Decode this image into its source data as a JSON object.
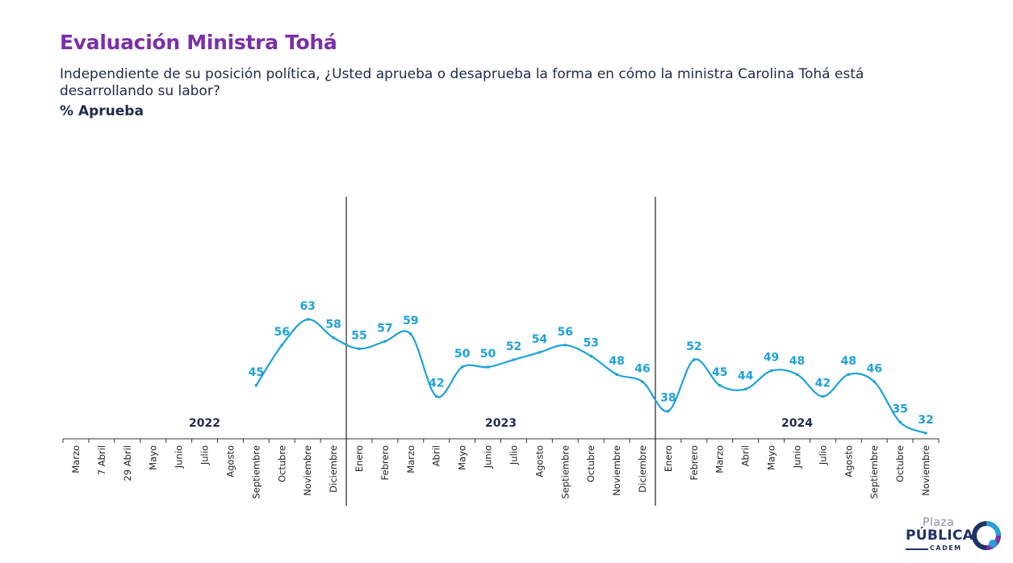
{
  "header": {
    "title": "Evaluación Ministra Tohá",
    "question": "Independiente de su posición política, ¿Usted aprueba o desaprueba la forma en cómo la ministra Carolina Tohá está desarrollando su labor?",
    "metric": "% Aprueba"
  },
  "colors": {
    "title": "#7b2fa8",
    "text": "#1f2a4d",
    "series": "#1ea1d9",
    "axis": "#333333"
  },
  "logo": {
    "line1": "Plaza",
    "line2": "PÚBLICA",
    "line3": "CADEM",
    "icon": "cadem-logo-icon"
  },
  "chart_data": {
    "type": "line",
    "title": "Evaluación Ministra Tohá",
    "xlabel": "",
    "ylabel": "% Aprueba",
    "grid": false,
    "legend": "none",
    "year_groups": [
      {
        "label": "2022",
        "start": 0,
        "end": 10
      },
      {
        "label": "2023",
        "start": 11,
        "end": 22
      },
      {
        "label": "2024",
        "start": 23,
        "end": 33
      }
    ],
    "categories": [
      "Marzo",
      "7 Abril",
      "29 Abril",
      "Mayo",
      "Junio",
      "Julio",
      "Agosto",
      "Septiembre",
      "Octubre",
      "Noviembre",
      "Diciembre",
      "Enero",
      "Febrero",
      "Marzo",
      "Abril",
      "Mayo",
      "Junio",
      "Julio",
      "Agosto",
      "Septiembre",
      "Octubre",
      "Noviembre",
      "Diciembre",
      "Enero",
      "Febrero",
      "Marzo",
      "Abril",
      "Mayo",
      "Junio",
      "Julio",
      "Agosto",
      "Septiembre",
      "Octubre",
      "Noviembre"
    ],
    "series": [
      {
        "values": [
          null,
          null,
          null,
          null,
          null,
          null,
          null,
          45,
          56,
          63,
          58,
          55,
          57,
          59,
          42,
          50,
          50,
          52,
          54,
          56,
          53,
          48,
          46,
          38,
          52,
          45,
          44,
          49,
          48,
          42,
          48,
          46,
          35,
          32
        ]
      }
    ]
  }
}
